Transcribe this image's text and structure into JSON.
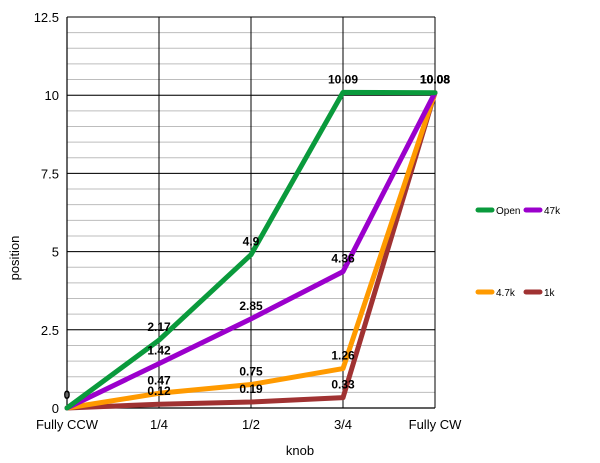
{
  "chart_data": {
    "type": "line",
    "title": "",
    "xlabel": "knob",
    "ylabel": "position",
    "categories": [
      "Fully CCW",
      "1/4",
      "1/2",
      "3/4",
      "Fully CW"
    ],
    "ylim": [
      0,
      12.5
    ],
    "yticks": [
      "0",
      "2.5",
      "5",
      "7.5",
      "10",
      "12.5"
    ],
    "grid": true,
    "legend_position": "right",
    "series": [
      {
        "name": "Open",
        "color": "#0a9a3c",
        "values": [
          0,
          2.17,
          4.9,
          10.09,
          10.08
        ],
        "labels": [
          "0",
          "2.17",
          "4.9",
          "10.09",
          "10.08"
        ]
      },
      {
        "name": "47k",
        "color": "#9b00cc",
        "values": [
          0,
          1.42,
          2.85,
          4.36,
          10.08
        ],
        "labels": [
          "",
          "1.42",
          "2.85",
          "4.36",
          "10.08"
        ]
      },
      {
        "name": "4.7k",
        "color": "#ff9a00",
        "values": [
          0,
          0.47,
          0.75,
          1.26,
          10.08
        ],
        "labels": [
          "",
          "0.47",
          "0.75",
          "1.26",
          "10.08"
        ]
      },
      {
        "name": "1k",
        "color": "#a03232",
        "values": [
          0,
          0.12,
          0.19,
          0.33,
          10.08
        ],
        "labels": [
          "",
          "0.12",
          "0.19",
          "0.33",
          "10.08"
        ]
      }
    ]
  }
}
